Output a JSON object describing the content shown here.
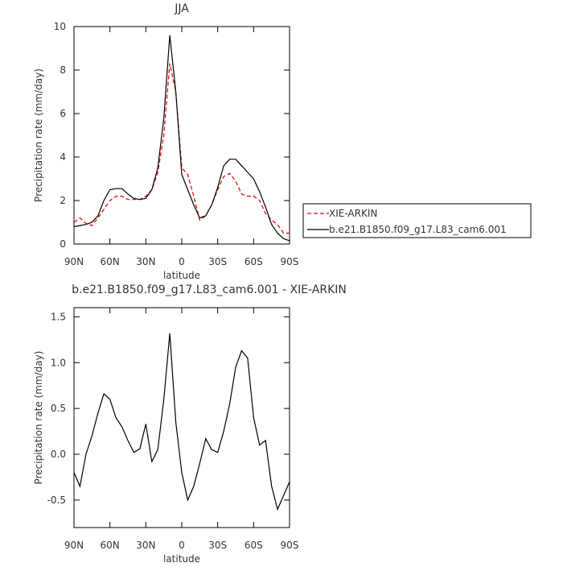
{
  "chart_data": [
    {
      "type": "line",
      "title": "JJA",
      "xlabel": "latitude",
      "ylabel": "Precipitation rate (mm/day)",
      "x": [
        90,
        85,
        80,
        75,
        70,
        65,
        60,
        55,
        50,
        45,
        40,
        35,
        30,
        25,
        20,
        15,
        10,
        5,
        0,
        -5,
        -10,
        -15,
        -20,
        -25,
        -30,
        -35,
        -40,
        -45,
        -50,
        -55,
        -60,
        -65,
        -70,
        -75,
        -80,
        -85,
        -90
      ],
      "series": [
        {
          "name": "XIE-ARKIN",
          "color": "#e00000",
          "dash": true,
          "values": [
            1.0,
            1.2,
            0.95,
            0.85,
            1.2,
            1.6,
            2.0,
            2.2,
            2.2,
            2.05,
            2.05,
            2.05,
            2.2,
            2.5,
            3.3,
            5.0,
            8.3,
            7.0,
            3.5,
            3.2,
            2.2,
            1.1,
            1.3,
            1.8,
            2.5,
            3.1,
            3.25,
            2.9,
            2.3,
            2.2,
            2.2,
            2.0,
            1.4,
            1.1,
            0.9,
            0.5,
            0.5
          ]
        },
        {
          "name": "b.e21.B1850.f09_g17.L83_cam6.001",
          "color": "#000000",
          "dash": false,
          "values": [
            0.8,
            0.85,
            0.9,
            1.0,
            1.3,
            2.0,
            2.5,
            2.55,
            2.55,
            2.3,
            2.1,
            2.05,
            2.1,
            2.5,
            3.5,
            5.8,
            9.6,
            7.0,
            3.2,
            2.5,
            1.8,
            1.2,
            1.3,
            1.8,
            2.6,
            3.6,
            3.9,
            3.9,
            3.6,
            3.3,
            3.0,
            2.4,
            1.7,
            0.9,
            0.5,
            0.25,
            0.15
          ]
        }
      ],
      "xlim": [
        90,
        -90
      ],
      "xticks": [
        {
          "value": 90,
          "label": "90N"
        },
        {
          "value": 60,
          "label": "60N"
        },
        {
          "value": 30,
          "label": "30N"
        },
        0,
        {
          "value": -30,
          "label": "30S"
        },
        {
          "value": -60,
          "label": "60S"
        },
        {
          "value": -90,
          "label": "90S"
        }
      ],
      "ylim": [
        0,
        10
      ],
      "yticks": [
        0,
        2,
        4,
        6,
        8,
        10
      ],
      "legend": "outside-right"
    },
    {
      "type": "line",
      "title": "b.e21.B1850.f09_g17.L83_cam6.001 - XIE-ARKIN",
      "xlabel": "latitude",
      "ylabel": "Precipitation rate (mm/day)",
      "x": [
        90,
        85,
        80,
        75,
        70,
        65,
        60,
        55,
        50,
        45,
        40,
        35,
        30,
        25,
        20,
        15,
        10,
        5,
        0,
        -5,
        -10,
        -15,
        -20,
        -25,
        -30,
        -35,
        -40,
        -45,
        -50,
        -55,
        -60,
        -65,
        -70,
        -75,
        -80,
        -85,
        -90
      ],
      "series": [
        {
          "color": "#000000",
          "values": [
            -0.2,
            -0.35,
            0.0,
            0.2,
            0.45,
            0.66,
            0.6,
            0.4,
            0.3,
            0.15,
            0.02,
            0.06,
            0.33,
            -0.08,
            0.05,
            0.6,
            1.32,
            0.35,
            -0.2,
            -0.5,
            -0.35,
            -0.1,
            0.17,
            0.05,
            0.02,
            0.25,
            0.55,
            0.95,
            1.13,
            1.05,
            0.4,
            0.1,
            0.15,
            -0.35,
            -0.6,
            -0.45,
            -0.3
          ]
        }
      ],
      "xlim": [
        90,
        -90
      ],
      "xticks": [
        {
          "value": 90,
          "label": "90N"
        },
        {
          "value": 60,
          "label": "60N"
        },
        {
          "value": 30,
          "label": "30N"
        },
        0,
        {
          "value": -30,
          "label": "30S"
        },
        {
          "value": -60,
          "label": "60S"
        },
        {
          "value": -90,
          "label": "90S"
        }
      ],
      "ylim": [
        -0.8,
        1.6
      ],
      "yticks": [
        -0.5,
        {
          "value": 0,
          "label": "0.0"
        },
        0.5,
        {
          "value": 1,
          "label": "1.0"
        },
        1.5
      ]
    }
  ]
}
